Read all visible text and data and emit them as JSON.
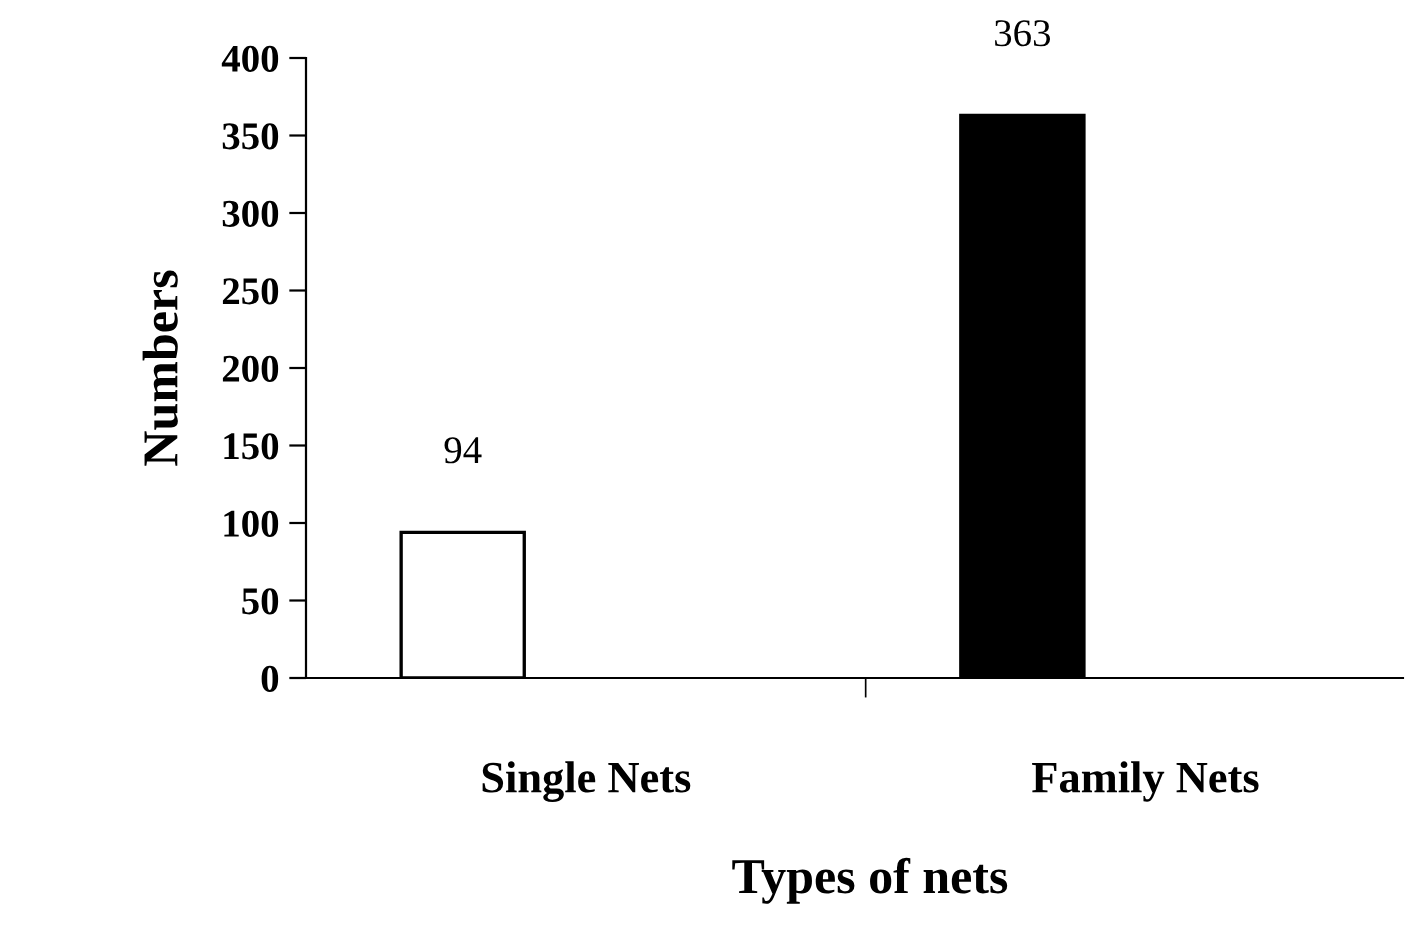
{
  "chart_data": {
    "type": "bar",
    "xlabel": "Types of nets",
    "ylabel": "Numbers",
    "categories": [
      "Single Nets",
      "Family Nets"
    ],
    "values": [
      94,
      363
    ],
    "colors": [
      "#ffffff",
      "#000000"
    ],
    "ylim": [
      0,
      400
    ],
    "yticks": [
      0,
      50,
      100,
      150,
      200,
      250,
      300,
      350,
      400
    ],
    "data_labels": true,
    "grid": false,
    "legend": false
  }
}
